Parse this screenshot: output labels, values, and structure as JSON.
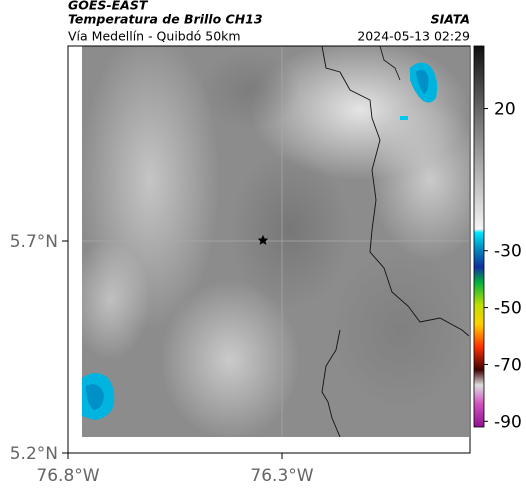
{
  "header": {
    "title": "GOES-EAST",
    "subtitle": "Temperatura de Brillo CH13",
    "region": "Vía Medellín - Quibdó 50km",
    "source": "SIATA",
    "timestamp": "2024-05-13 02:29"
  },
  "axes": {
    "lat_labels": [
      "5.7°N",
      "5.2°N"
    ],
    "lon_labels": [
      "76.8°W",
      "76.3°W"
    ]
  },
  "colorbar": {
    "lim": [
      -92,
      42
    ],
    "ticks": [
      20,
      -30,
      -50,
      -70,
      -90
    ]
  }
}
